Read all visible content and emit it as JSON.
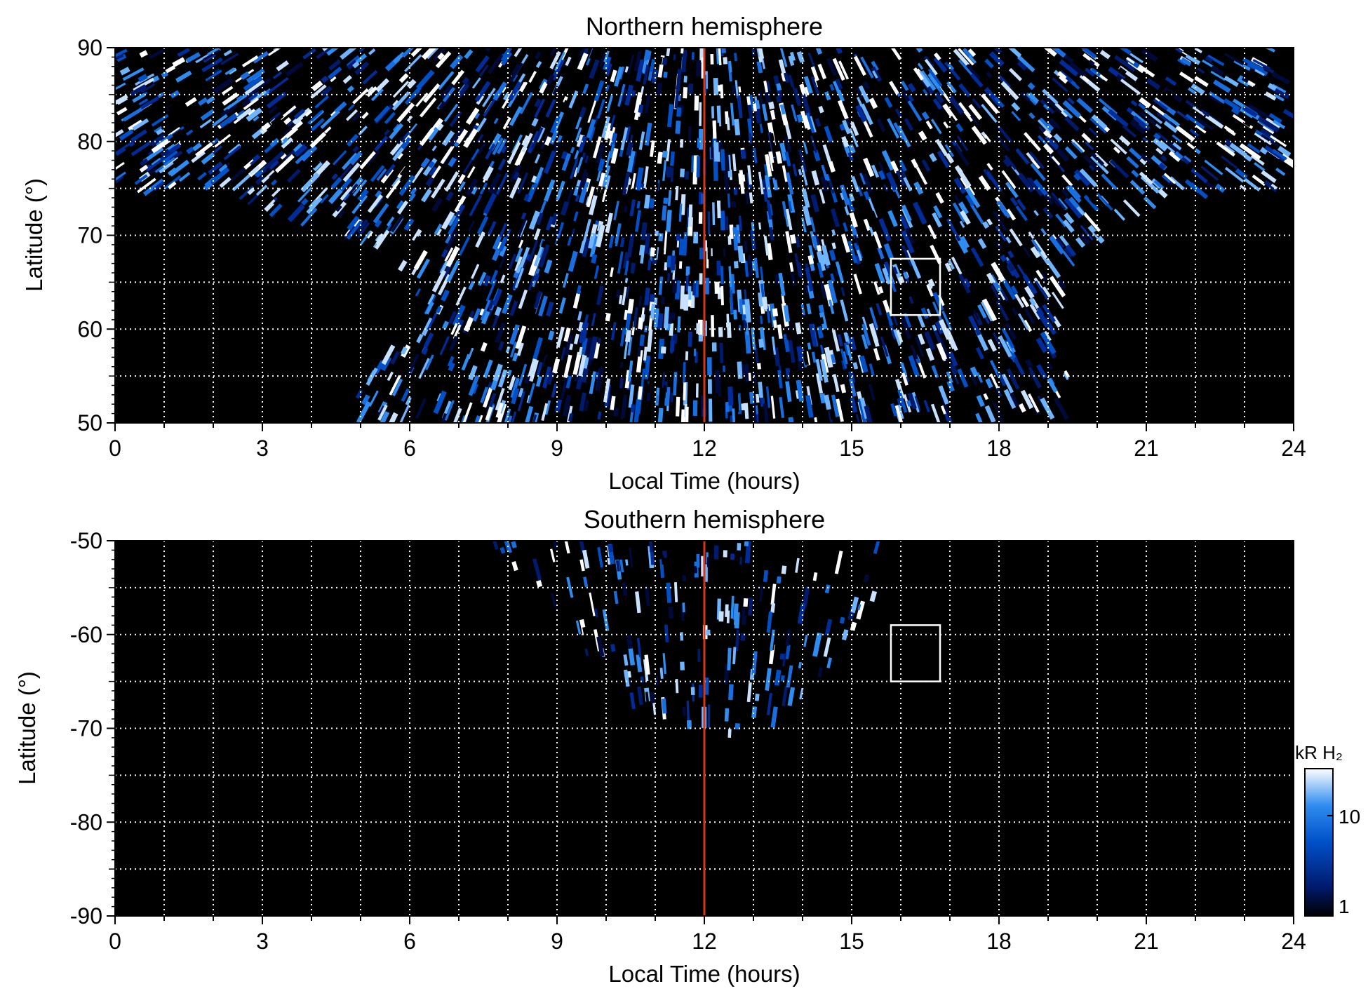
{
  "chart_data": [
    {
      "type": "heatmap",
      "title": "Northern hemisphere",
      "xlabel": "Local Time (hours)",
      "ylabel": "Latitude (°)",
      "xlim": [
        0,
        24
      ],
      "ylim": [
        50,
        90
      ],
      "xticks": [
        0,
        3,
        6,
        9,
        12,
        15,
        18,
        21,
        24
      ],
      "yticks": [
        50,
        60,
        70,
        80,
        90
      ],
      "grid": true,
      "colormap": [
        "#000000",
        "#001a6e",
        "#0050c8",
        "#2f8cf0",
        "#ffffff"
      ],
      "background": "#000000",
      "coverage": {
        "description_note": "",
        "boundary_lt": [
          [
            4.6,
            50
          ],
          [
            5.2,
            55
          ],
          [
            5.9,
            60
          ],
          [
            6.2,
            65
          ],
          [
            5.5,
            68
          ],
          [
            3.5,
            72
          ],
          [
            1.5,
            75
          ],
          [
            0,
            75
          ],
          [
            0,
            90
          ],
          [
            24,
            90
          ],
          [
            24,
            75
          ],
          [
            22.3,
            75
          ],
          [
            20.6,
            72
          ],
          [
            19.6,
            68
          ],
          [
            19.3,
            62
          ],
          [
            19.4,
            56
          ],
          [
            19.5,
            50
          ]
        ]
      },
      "annotations": [
        {
          "type": "vertical-line",
          "x": 12,
          "color": "#d03a1a"
        },
        {
          "type": "box",
          "x": [
            15.8,
            16.8
          ],
          "y": [
            61.5,
            67.5
          ],
          "color": "#ffffff"
        }
      ]
    },
    {
      "type": "heatmap",
      "title": "Southern hemisphere",
      "xlabel": "Local Time (hours)",
      "ylabel": "Latitude (°)",
      "xlim": [
        0,
        24
      ],
      "ylim": [
        -90,
        -50
      ],
      "xticks": [
        0,
        3,
        6,
        9,
        12,
        15,
        18,
        21,
        24
      ],
      "yticks": [
        -50,
        -60,
        -70,
        -80,
        -90
      ],
      "grid": true,
      "colormap": [
        "#000000",
        "#001a6e",
        "#0050c8",
        "#2f8cf0",
        "#ffffff"
      ],
      "background": "#000000",
      "coverage": {
        "boundary_lt": [
          [
            7.7,
            -50
          ],
          [
            8.6,
            -57
          ],
          [
            9.6,
            -62
          ],
          [
            10.6,
            -68
          ],
          [
            12.0,
            -72
          ],
          [
            13.3,
            -70
          ],
          [
            14.2,
            -66
          ],
          [
            15.0,
            -62
          ],
          [
            15.5,
            -57
          ],
          [
            15.8,
            -50
          ]
        ]
      },
      "annotations": [
        {
          "type": "vertical-line",
          "x": 12,
          "color": "#d03a1a"
        },
        {
          "type": "box",
          "x": [
            15.8,
            16.8
          ],
          "y": [
            -65,
            -59
          ],
          "color": "#ffffff"
        }
      ]
    }
  ],
  "colorbar": {
    "label": "kR H₂",
    "ticks": [
      "10",
      "1"
    ],
    "scale": "log",
    "colors": [
      "#000000",
      "#001a6e",
      "#0050c8",
      "#2f8cf0",
      "#ffffff"
    ]
  },
  "labels": {
    "north_title": "Northern hemisphere",
    "south_title": "Southern hemisphere",
    "xlabel": "Local Time (hours)",
    "ylabel": "Latitude (°)",
    "cbar_label": "kR H₂",
    "cbar_tick_10": "10",
    "cbar_tick_1": "1"
  }
}
